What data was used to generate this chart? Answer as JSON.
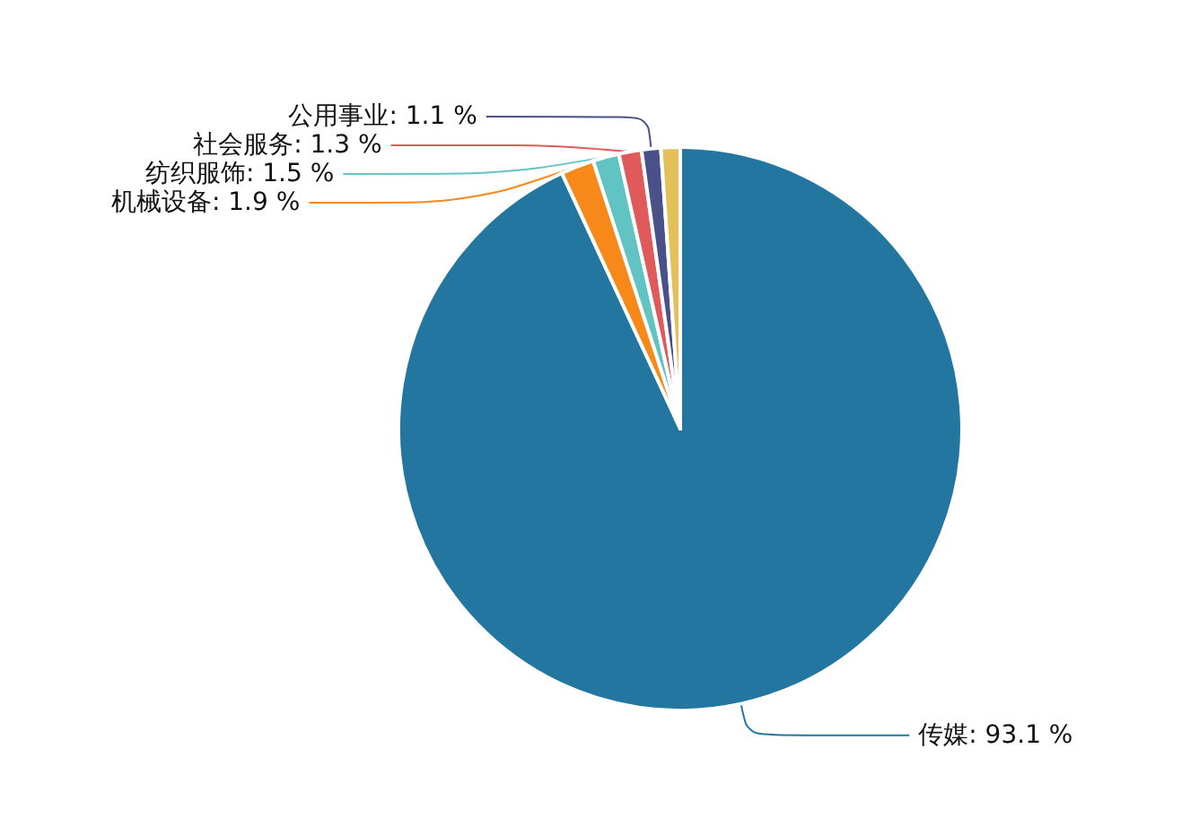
{
  "chart_data": {
    "type": "pie",
    "categories": [
      "传媒",
      "机械设备",
      "纺织服饰",
      "社会服务",
      "公用事业",
      null
    ],
    "values": [
      93.1,
      1.9,
      1.5,
      1.3,
      1.1,
      1.1
    ],
    "value_labels": [
      "93.1 %",
      "1.9 %",
      "1.5 %",
      "1.3 %",
      "1.1 %",
      null
    ],
    "colors": [
      "#23769f",
      "#f7891a",
      "#62c3c3",
      "#e05a5c",
      "#4a5088",
      "#e3c158"
    ],
    "legend": false
  }
}
